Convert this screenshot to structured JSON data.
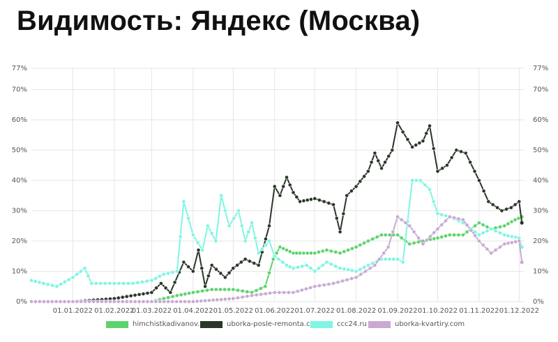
{
  "title": "Видимость: Яндекс (Москва)",
  "chart_data": {
    "type": "line",
    "y_ticks": [
      "0%",
      "10%",
      "20%",
      "30%",
      "40%",
      "50%",
      "60%",
      "70%",
      "77%"
    ],
    "y_values": [
      0,
      10,
      20,
      30,
      40,
      50,
      60,
      70,
      77
    ],
    "ylim": [
      0,
      77
    ],
    "x_ticks": [
      "01.01.2022",
      "01.02.2022",
      "01.03.2022",
      "01.04.2022",
      "01.05.2022",
      "01.06.2022",
      "01.07.2022",
      "01.08.2022",
      "01.09.2022",
      "01.10.2022",
      "01.11.2022",
      "01.12.2022"
    ],
    "xlim": [
      "2021-12-01",
      "2022-12-05"
    ],
    "grid": true,
    "legend_position": "bottom",
    "series": [
      {
        "name": "himchistkadivanov.ru",
        "color": "#5dd36b",
        "points": [
          [
            "2021-12-01",
            0
          ],
          [
            "2022-01-01",
            0
          ],
          [
            "2022-02-01",
            0
          ],
          [
            "2022-03-01",
            0
          ],
          [
            "2022-03-10",
            1
          ],
          [
            "2022-03-20",
            2
          ],
          [
            "2022-04-01",
            3
          ],
          [
            "2022-04-15",
            4
          ],
          [
            "2022-05-01",
            4
          ],
          [
            "2022-05-15",
            3
          ],
          [
            "2022-05-25",
            5
          ],
          [
            "2022-05-31",
            14
          ],
          [
            "2022-06-05",
            18
          ],
          [
            "2022-06-10",
            17
          ],
          [
            "2022-06-15",
            16
          ],
          [
            "2022-06-20",
            16
          ],
          [
            "2022-07-01",
            16
          ],
          [
            "2022-07-10",
            17
          ],
          [
            "2022-07-20",
            16
          ],
          [
            "2022-08-01",
            18
          ],
          [
            "2022-08-10",
            20
          ],
          [
            "2022-08-20",
            22
          ],
          [
            "2022-09-01",
            22
          ],
          [
            "2022-09-10",
            19
          ],
          [
            "2022-09-20",
            20
          ],
          [
            "2022-10-01",
            21
          ],
          [
            "2022-10-10",
            22
          ],
          [
            "2022-10-20",
            22
          ],
          [
            "2022-11-01",
            26
          ],
          [
            "2022-11-10",
            24
          ],
          [
            "2022-11-20",
            25
          ],
          [
            "2022-11-28",
            27
          ],
          [
            "2022-12-03",
            28
          ]
        ]
      },
      {
        "name": "uborka-posle-remonta.com",
        "color": "#2a3628",
        "points": [
          [
            "2021-12-01",
            0
          ],
          [
            "2022-01-01",
            0
          ],
          [
            "2022-02-01",
            1
          ],
          [
            "2022-03-01",
            3
          ],
          [
            "2022-03-08",
            6
          ],
          [
            "2022-03-15",
            3
          ],
          [
            "2022-03-25",
            13
          ],
          [
            "2022-04-01",
            10
          ],
          [
            "2022-04-05",
            17
          ],
          [
            "2022-04-10",
            5
          ],
          [
            "2022-04-15",
            12
          ],
          [
            "2022-04-25",
            8
          ],
          [
            "2022-05-01",
            11
          ],
          [
            "2022-05-10",
            14
          ],
          [
            "2022-05-20",
            12
          ],
          [
            "2022-05-28",
            25
          ],
          [
            "2022-06-01",
            38
          ],
          [
            "2022-06-05",
            35
          ],
          [
            "2022-06-10",
            41
          ],
          [
            "2022-06-15",
            36
          ],
          [
            "2022-06-20",
            33
          ],
          [
            "2022-07-01",
            34
          ],
          [
            "2022-07-08",
            33
          ],
          [
            "2022-07-15",
            32
          ],
          [
            "2022-07-20",
            23
          ],
          [
            "2022-07-25",
            35
          ],
          [
            "2022-08-01",
            38
          ],
          [
            "2022-08-10",
            43
          ],
          [
            "2022-08-15",
            49
          ],
          [
            "2022-08-20",
            44
          ],
          [
            "2022-08-28",
            50
          ],
          [
            "2022-09-01",
            59
          ],
          [
            "2022-09-05",
            56
          ],
          [
            "2022-09-12",
            51
          ],
          [
            "2022-09-20",
            53
          ],
          [
            "2022-09-25",
            58
          ],
          [
            "2022-10-01",
            43
          ],
          [
            "2022-10-08",
            45
          ],
          [
            "2022-10-15",
            50
          ],
          [
            "2022-10-22",
            49
          ],
          [
            "2022-11-01",
            40
          ],
          [
            "2022-11-08",
            33
          ],
          [
            "2022-11-18",
            30
          ],
          [
            "2022-11-25",
            31
          ],
          [
            "2022-12-01",
            33
          ],
          [
            "2022-12-03",
            26
          ]
        ]
      },
      {
        "name": "ccc24.ru",
        "color": "#7ff5e3",
        "points": [
          [
            "2021-12-01",
            7
          ],
          [
            "2021-12-10",
            6
          ],
          [
            "2021-12-20",
            5
          ],
          [
            "2022-01-01",
            8
          ],
          [
            "2022-01-10",
            11
          ],
          [
            "2022-01-15",
            6
          ],
          [
            "2022-02-01",
            6
          ],
          [
            "2022-02-15",
            6
          ],
          [
            "2022-03-01",
            7
          ],
          [
            "2022-03-10",
            9
          ],
          [
            "2022-03-20",
            10
          ],
          [
            "2022-03-25",
            33
          ],
          [
            "2022-04-01",
            22
          ],
          [
            "2022-04-08",
            17
          ],
          [
            "2022-04-12",
            25
          ],
          [
            "2022-04-18",
            20
          ],
          [
            "2022-04-22",
            35
          ],
          [
            "2022-04-28",
            25
          ],
          [
            "2022-05-05",
            30
          ],
          [
            "2022-05-10",
            20
          ],
          [
            "2022-05-15",
            26
          ],
          [
            "2022-05-20",
            16
          ],
          [
            "2022-05-28",
            20
          ],
          [
            "2022-06-01",
            15
          ],
          [
            "2022-06-10",
            12
          ],
          [
            "2022-06-15",
            11
          ],
          [
            "2022-06-25",
            12
          ],
          [
            "2022-07-01",
            10
          ],
          [
            "2022-07-10",
            13
          ],
          [
            "2022-07-20",
            11
          ],
          [
            "2022-08-01",
            10
          ],
          [
            "2022-08-10",
            12
          ],
          [
            "2022-08-20",
            14
          ],
          [
            "2022-09-01",
            14
          ],
          [
            "2022-09-05",
            13
          ],
          [
            "2022-09-12",
            40
          ],
          [
            "2022-09-18",
            40
          ],
          [
            "2022-09-25",
            37
          ],
          [
            "2022-10-01",
            29
          ],
          [
            "2022-10-10",
            28
          ],
          [
            "2022-10-20",
            26
          ],
          [
            "2022-11-01",
            22
          ],
          [
            "2022-11-10",
            24
          ],
          [
            "2022-11-20",
            22
          ],
          [
            "2022-12-01",
            21
          ],
          [
            "2022-12-03",
            18
          ]
        ]
      },
      {
        "name": "uborka-kvartiry.com",
        "color": "#c9a9d3",
        "points": [
          [
            "2021-12-01",
            0
          ],
          [
            "2022-01-01",
            0
          ],
          [
            "2022-02-01",
            0
          ],
          [
            "2022-03-01",
            0
          ],
          [
            "2022-04-01",
            0
          ],
          [
            "2022-05-01",
            1
          ],
          [
            "2022-05-15",
            2
          ],
          [
            "2022-06-01",
            3
          ],
          [
            "2022-06-15",
            3
          ],
          [
            "2022-07-01",
            5
          ],
          [
            "2022-07-15",
            6
          ],
          [
            "2022-08-01",
            8
          ],
          [
            "2022-08-15",
            12
          ],
          [
            "2022-08-25",
            18
          ],
          [
            "2022-09-01",
            28
          ],
          [
            "2022-09-10",
            25
          ],
          [
            "2022-09-20",
            19
          ],
          [
            "2022-10-01",
            24
          ],
          [
            "2022-10-10",
            28
          ],
          [
            "2022-10-20",
            27
          ],
          [
            "2022-11-01",
            20
          ],
          [
            "2022-11-10",
            16
          ],
          [
            "2022-11-20",
            19
          ],
          [
            "2022-12-01",
            20
          ],
          [
            "2022-12-03",
            13
          ]
        ]
      }
    ]
  }
}
